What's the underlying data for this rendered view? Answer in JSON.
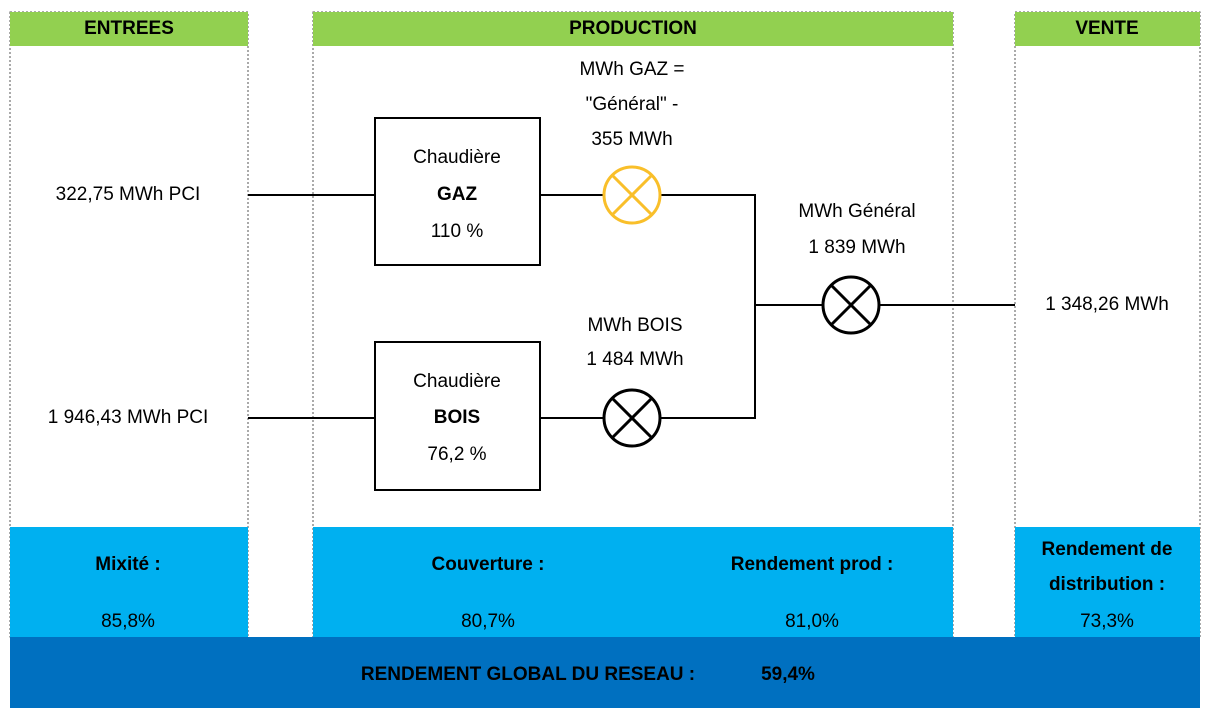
{
  "sections": {
    "entrees": {
      "title": "ENTREES",
      "inputs": [
        "322,75 MWh PCI",
        "1 946,43 MWh PCI"
      ],
      "metric_label": "Mixité :",
      "metric_value": "85,8%"
    },
    "production": {
      "title": "PRODUCTION",
      "boilers": [
        {
          "line1": "Chaudière",
          "name": "GAZ",
          "efficiency": "110 %"
        },
        {
          "line1": "Chaudière",
          "name": "BOIS",
          "efficiency": "76,2 %"
        }
      ],
      "meters": {
        "gaz": [
          "MWh GAZ =",
          "\"Général\" -",
          "355 MWh"
        ],
        "bois": [
          "MWh BOIS",
          "1 484 MWh"
        ],
        "general": [
          "MWh Général",
          "1 839 MWh"
        ]
      },
      "metrics": [
        {
          "label": "Couverture :",
          "value": "80,7%"
        },
        {
          "label": "Rendement prod :",
          "value": "81,0%"
        }
      ]
    },
    "vente": {
      "title": "VENTE",
      "output": "1 348,26 MWh",
      "metric_label": [
        "Rendement de",
        "distribution :"
      ],
      "metric_value": "73,3%"
    }
  },
  "footer": {
    "label": "RENDEMENT GLOBAL DU RESEAU :",
    "value": "59,4%"
  }
}
